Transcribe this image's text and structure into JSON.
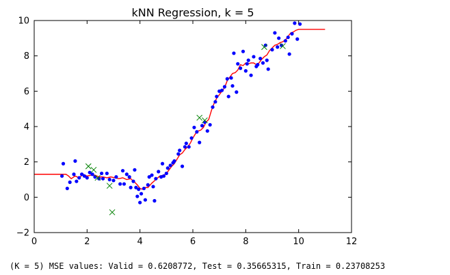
{
  "chart_data": {
    "type": "scatter",
    "title": "kNN Regression, k = 5",
    "xlabel": "",
    "ylabel": "",
    "xlim": [
      0,
      12
    ],
    "ylim": [
      -2,
      10
    ],
    "xticks": [
      0,
      2,
      4,
      6,
      8,
      10,
      12
    ],
    "yticks": [
      -2,
      0,
      2,
      4,
      6,
      8,
      10
    ],
    "grid": false,
    "colors": {
      "train": "#0000ff",
      "test": "#008000",
      "fit": "#ff0000",
      "axes": "#000000"
    },
    "series": [
      {
        "marker": "dot",
        "points": [
          [
            1.05,
            1.2
          ],
          [
            1.1,
            1.9
          ],
          [
            1.25,
            0.5
          ],
          [
            1.35,
            0.85
          ],
          [
            1.5,
            1.3
          ],
          [
            1.55,
            2.05
          ],
          [
            1.6,
            0.9
          ],
          [
            1.7,
            1.1
          ],
          [
            1.8,
            1.3
          ],
          [
            1.9,
            1.2
          ],
          [
            2.0,
            1.1
          ],
          [
            2.1,
            1.4
          ],
          [
            2.2,
            1.3
          ],
          [
            2.3,
            1.15
          ],
          [
            2.45,
            1.05
          ],
          [
            2.55,
            1.35
          ],
          [
            2.6,
            1.05
          ],
          [
            2.75,
            1.35
          ],
          [
            2.85,
            1.0
          ],
          [
            3.0,
            0.95
          ],
          [
            3.1,
            1.15
          ],
          [
            3.25,
            0.75
          ],
          [
            3.35,
            1.5
          ],
          [
            3.4,
            0.75
          ],
          [
            3.5,
            1.3
          ],
          [
            3.6,
            1.15
          ],
          [
            3.65,
            0.55
          ],
          [
            3.75,
            0.9
          ],
          [
            3.8,
            1.55
          ],
          [
            3.85,
            0.55
          ],
          [
            3.9,
            0.05
          ],
          [
            3.95,
            0.45
          ],
          [
            4.0,
            -0.3
          ],
          [
            4.05,
            0.2
          ],
          [
            4.15,
            0.5
          ],
          [
            4.2,
            -0.15
          ],
          [
            4.3,
            0.7
          ],
          [
            4.35,
            1.15
          ],
          [
            4.45,
            1.25
          ],
          [
            4.5,
            0.6
          ],
          [
            4.55,
            -0.2
          ],
          [
            4.6,
            1.05
          ],
          [
            4.7,
            1.45
          ],
          [
            4.8,
            1.15
          ],
          [
            4.85,
            1.9
          ],
          [
            4.9,
            1.2
          ],
          [
            5.0,
            1.35
          ],
          [
            5.05,
            1.65
          ],
          [
            5.15,
            1.8
          ],
          [
            5.25,
            1.95
          ],
          [
            5.3,
            2.05
          ],
          [
            5.45,
            2.45
          ],
          [
            5.5,
            2.65
          ],
          [
            5.6,
            1.75
          ],
          [
            5.7,
            2.85
          ],
          [
            5.75,
            3.05
          ],
          [
            5.85,
            2.85
          ],
          [
            5.95,
            3.35
          ],
          [
            6.05,
            3.95
          ],
          [
            6.15,
            3.7
          ],
          [
            6.25,
            3.1
          ],
          [
            6.35,
            4.05
          ],
          [
            6.45,
            4.25
          ],
          [
            6.55,
            3.75
          ],
          [
            6.65,
            4.1
          ],
          [
            6.75,
            5.1
          ],
          [
            6.85,
            5.4
          ],
          [
            6.9,
            5.7
          ],
          [
            7.0,
            6.0
          ],
          [
            7.1,
            6.05
          ],
          [
            7.2,
            6.25
          ],
          [
            7.3,
            6.7
          ],
          [
            7.35,
            5.7
          ],
          [
            7.45,
            6.75
          ],
          [
            7.5,
            6.3
          ],
          [
            7.55,
            8.15
          ],
          [
            7.65,
            5.95
          ],
          [
            7.7,
            7.55
          ],
          [
            7.8,
            7.3
          ],
          [
            7.9,
            8.25
          ],
          [
            8.0,
            7.15
          ],
          [
            8.05,
            7.55
          ],
          [
            8.1,
            7.75
          ],
          [
            8.2,
            6.9
          ],
          [
            8.3,
            7.95
          ],
          [
            8.4,
            7.4
          ],
          [
            8.45,
            7.5
          ],
          [
            8.55,
            7.85
          ],
          [
            8.65,
            7.6
          ],
          [
            8.75,
            8.6
          ],
          [
            8.8,
            7.75
          ],
          [
            8.85,
            7.25
          ],
          [
            9.0,
            8.35
          ],
          [
            9.1,
            9.3
          ],
          [
            9.2,
            8.5
          ],
          [
            9.25,
            9.0
          ],
          [
            9.35,
            8.6
          ],
          [
            9.5,
            8.85
          ],
          [
            9.6,
            9.05
          ],
          [
            9.65,
            8.1
          ],
          [
            9.75,
            9.25
          ],
          [
            9.85,
            9.85
          ],
          [
            9.95,
            8.95
          ],
          [
            10.05,
            9.8
          ]
        ]
      },
      {
        "marker": "x",
        "points": [
          [
            2.05,
            1.75
          ],
          [
            2.25,
            1.55
          ],
          [
            2.4,
            1.1
          ],
          [
            2.85,
            0.65
          ],
          [
            2.95,
            -0.85
          ],
          [
            6.25,
            4.5
          ],
          [
            6.45,
            4.35
          ],
          [
            8.7,
            8.5
          ],
          [
            9.4,
            8.55
          ]
        ]
      },
      {
        "marker": "line",
        "points": [
          [
            0,
            1.3
          ],
          [
            1.2,
            1.3
          ],
          [
            1.3,
            1.2
          ],
          [
            1.4,
            1.05
          ],
          [
            1.55,
            1.2
          ],
          [
            1.7,
            1.1
          ],
          [
            1.85,
            1.3
          ],
          [
            2.0,
            1.2
          ],
          [
            2.15,
            1.25
          ],
          [
            2.3,
            1.25
          ],
          [
            2.45,
            1.15
          ],
          [
            2.6,
            1.15
          ],
          [
            2.75,
            1.1
          ],
          [
            2.9,
            1.15
          ],
          [
            3.05,
            1.1
          ],
          [
            3.2,
            1.05
          ],
          [
            3.35,
            1.1
          ],
          [
            3.5,
            1.0
          ],
          [
            3.65,
            1.05
          ],
          [
            3.8,
            0.85
          ],
          [
            3.9,
            0.7
          ],
          [
            4.0,
            0.5
          ],
          [
            4.1,
            0.45
          ],
          [
            4.2,
            0.55
          ],
          [
            4.3,
            0.55
          ],
          [
            4.45,
            0.8
          ],
          [
            4.6,
            1.0
          ],
          [
            4.75,
            1.2
          ],
          [
            4.9,
            1.25
          ],
          [
            5.0,
            1.35
          ],
          [
            5.1,
            1.55
          ],
          [
            5.2,
            1.75
          ],
          [
            5.3,
            1.9
          ],
          [
            5.4,
            2.15
          ],
          [
            5.5,
            2.4
          ],
          [
            5.6,
            2.5
          ],
          [
            5.7,
            2.7
          ],
          [
            5.8,
            2.85
          ],
          [
            5.9,
            3.05
          ],
          [
            6.0,
            3.35
          ],
          [
            6.1,
            3.6
          ],
          [
            6.2,
            3.75
          ],
          [
            6.3,
            3.8
          ],
          [
            6.4,
            3.95
          ],
          [
            6.5,
            4.25
          ],
          [
            6.6,
            4.4
          ],
          [
            6.7,
            4.9
          ],
          [
            6.8,
            5.3
          ],
          [
            6.9,
            5.6
          ],
          [
            7.0,
            5.8
          ],
          [
            7.1,
            6.0
          ],
          [
            7.2,
            6.2
          ],
          [
            7.3,
            6.6
          ],
          [
            7.4,
            6.8
          ],
          [
            7.5,
            7.0
          ],
          [
            7.6,
            7.05
          ],
          [
            7.7,
            7.2
          ],
          [
            7.8,
            7.5
          ],
          [
            7.9,
            7.45
          ],
          [
            8.0,
            7.6
          ],
          [
            8.1,
            7.55
          ],
          [
            8.2,
            7.6
          ],
          [
            8.3,
            7.6
          ],
          [
            8.4,
            7.5
          ],
          [
            8.5,
            7.6
          ],
          [
            8.6,
            7.8
          ],
          [
            8.7,
            7.95
          ],
          [
            8.8,
            8.05
          ],
          [
            8.9,
            8.3
          ],
          [
            9.0,
            8.45
          ],
          [
            9.1,
            8.6
          ],
          [
            9.2,
            8.65
          ],
          [
            9.3,
            8.75
          ],
          [
            9.4,
            8.8
          ],
          [
            9.5,
            8.9
          ],
          [
            9.6,
            9.1
          ],
          [
            9.7,
            9.3
          ],
          [
            9.8,
            9.35
          ],
          [
            9.9,
            9.45
          ],
          [
            10.0,
            9.5
          ],
          [
            11.0,
            9.5
          ]
        ]
      }
    ]
  },
  "caption": "(K = 5) MSE values: Valid = 0.6208772, Test = 0.35665315, Train = 0.23708253"
}
